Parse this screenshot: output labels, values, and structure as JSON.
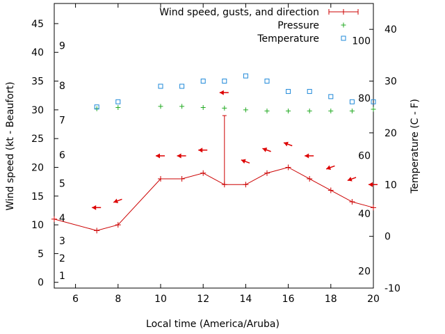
{
  "chart_data": {
    "type": "line",
    "xlabel": "Local time (America/Aruba)",
    "ylabel_left": "Wind speed (kt - Beaufort)",
    "ylabel_right": "Temperature (C - F)",
    "x_ticks": [
      "6",
      "8",
      "10",
      "12",
      "14",
      "16",
      "18",
      "20"
    ],
    "x_tick_values": [
      6,
      8,
      10,
      12,
      14,
      16,
      18,
      20
    ],
    "xlim": [
      5,
      20
    ],
    "y_left_ticks": [
      "0",
      "5",
      "10",
      "15",
      "20",
      "25",
      "30",
      "35",
      "40",
      "45"
    ],
    "y_left_tick_values": [
      0,
      5,
      10,
      15,
      20,
      25,
      30,
      35,
      40,
      45
    ],
    "ylim_left": [
      -1,
      48.5
    ],
    "beaufort_labels": [
      {
        "label": "1",
        "kt": 1.2
      },
      {
        "label": "2",
        "kt": 4.2
      },
      {
        "label": "3",
        "kt": 7.2
      },
      {
        "label": "4",
        "kt": 11.2
      },
      {
        "label": "5",
        "kt": 17.2
      },
      {
        "label": "6",
        "kt": 22.2
      },
      {
        "label": "7",
        "kt": 28.2
      },
      {
        "label": "8",
        "kt": 34.2
      },
      {
        "label": "9",
        "kt": 41.2
      }
    ],
    "y_right_ticks": [
      "-10",
      "0",
      "10",
      "20",
      "30",
      "40"
    ],
    "y_right_tick_values": [
      -10,
      0,
      10,
      20,
      30,
      40
    ],
    "ylim_right": [
      -10,
      45
    ],
    "fahrenheit_labels": [
      {
        "label": "20",
        "c": -6.7
      },
      {
        "label": "40",
        "c": 4.4
      },
      {
        "label": "60",
        "c": 15.6
      },
      {
        "label": "80",
        "c": 26.7
      },
      {
        "label": "100",
        "c": 37.8
      }
    ],
    "legend_position": "top-right",
    "colors": {
      "wind": "#cc0000",
      "arrow": "#dd0000",
      "pressure": "#22aa22",
      "temperature": "#1e88d8"
    },
    "series": [
      {
        "name": "Wind speed, gusts, and direction",
        "x": [
          5,
          7,
          8,
          10,
          11,
          12,
          13,
          14,
          15,
          16,
          17,
          18,
          19,
          20
        ],
        "values": [
          11,
          9,
          10,
          18,
          18,
          19,
          17,
          17,
          19,
          20,
          18,
          16,
          14,
          13
        ],
        "gust": {
          "x": 13,
          "value": 29
        }
      },
      {
        "name": "Pressure",
        "x": [
          7,
          8,
          10,
          11,
          12,
          13,
          14,
          15,
          16,
          17,
          18,
          19,
          20
        ],
        "values": [
          30.2,
          30.4,
          30.6,
          30.6,
          30.4,
          30.3,
          30.0,
          29.8,
          29.8,
          29.8,
          29.8,
          29.8,
          30.1
        ]
      },
      {
        "name": "Temperature",
        "x": [
          7,
          8,
          10,
          11,
          12,
          13,
          14,
          15,
          16,
          17,
          18,
          19,
          20
        ],
        "values": [
          25,
          26,
          29,
          29,
          30,
          30,
          31,
          30,
          28,
          28,
          27,
          26,
          26
        ]
      }
    ],
    "wind_arrows": [
      {
        "x": 7,
        "kt": 13,
        "dir": "W"
      },
      {
        "x": 8,
        "kt": 14.2,
        "dir": "WNW"
      },
      {
        "x": 10,
        "kt": 22,
        "dir": "W"
      },
      {
        "x": 11,
        "kt": 22,
        "dir": "W"
      },
      {
        "x": 12,
        "kt": 23,
        "dir": "W"
      },
      {
        "x": 13,
        "kt": 33,
        "dir": "W"
      },
      {
        "x": 14,
        "kt": 21,
        "dir": "WSW"
      },
      {
        "x": 15,
        "kt": 23,
        "dir": "WSW"
      },
      {
        "x": 16,
        "kt": 24,
        "dir": "WSW"
      },
      {
        "x": 17,
        "kt": 22,
        "dir": "W"
      },
      {
        "x": 18,
        "kt": 20,
        "dir": "WNW"
      },
      {
        "x": 19,
        "kt": 18,
        "dir": "WNW"
      },
      {
        "x": 20,
        "kt": 17,
        "dir": "W"
      }
    ]
  }
}
